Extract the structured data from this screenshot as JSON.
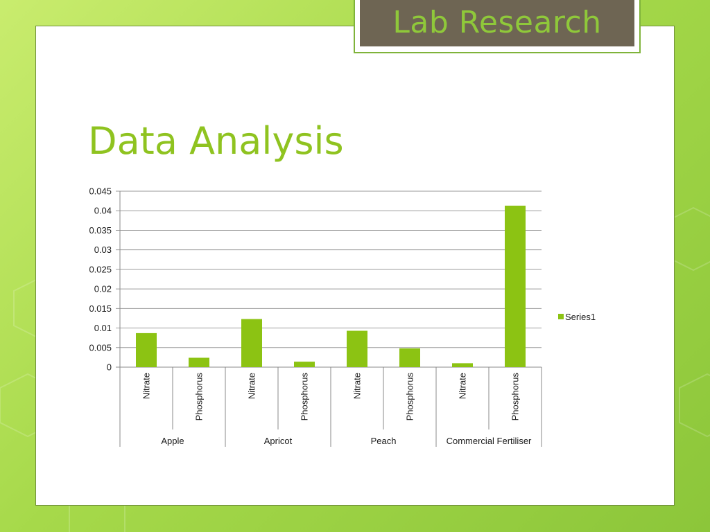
{
  "header": {
    "tag_text": "Lab Research"
  },
  "slide": {
    "title": "Data Analysis"
  },
  "colors": {
    "bar": "#8cc313",
    "title": "#8fc320",
    "tag_bg": "#6e6553"
  },
  "chart_data": {
    "type": "bar",
    "title": "",
    "xlabel": "",
    "ylabel": "",
    "ylim": [
      0,
      0.045
    ],
    "yticks": [
      "0",
      "0.005",
      "0.01",
      "0.015",
      "0.02",
      "0.025",
      "0.03",
      "0.035",
      "0.04",
      "0.045"
    ],
    "grid": true,
    "legend_position": "right",
    "groups": [
      "Apple",
      "Apricot",
      "Peach",
      "Commercial Fertiliser"
    ],
    "categories": [
      "Nitrate",
      "Phosphorus",
      "Nitrate",
      "Phosphorus",
      "Nitrate",
      "Phosphorus",
      "Nitrate",
      "Phosphorus"
    ],
    "series": [
      {
        "name": "Series1",
        "values": [
          0.0087,
          0.0024,
          0.0123,
          0.0014,
          0.0093,
          0.0048,
          0.001,
          0.0413
        ]
      }
    ]
  }
}
